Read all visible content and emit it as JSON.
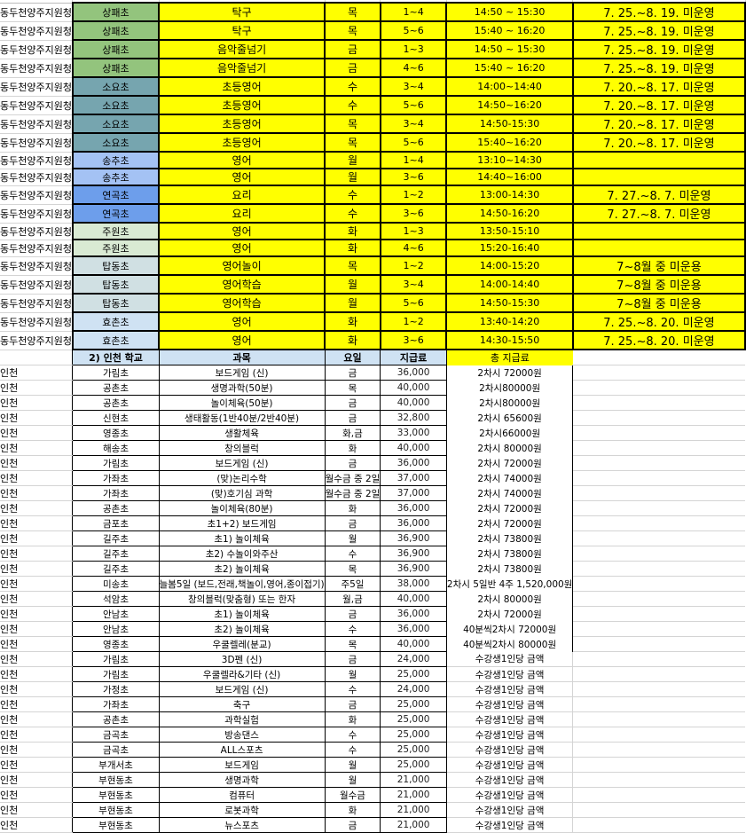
{
  "school_colors": {
    "상패초": "#93c47d",
    "소요초": "#76a5af",
    "송추초": "#a4c2f4",
    "연곡초": "#6d9eeb",
    "주원초": "#d9ead3",
    "탑동초": "#d0e0e3",
    "효촌초": "#cfe2f3"
  },
  "top_rows": [
    {
      "region": "동두천양주지원청",
      "school": "상패초",
      "subject": "탁구",
      "day": "목",
      "grade": "1~4",
      "time": "14:50 ~ 15:30",
      "note": "7. 25.~8. 19. 미운영"
    },
    {
      "region": "동두천양주지원청",
      "school": "상패초",
      "subject": "탁구",
      "day": "목",
      "grade": "5~6",
      "time": "15:40 ~ 16:20",
      "note": "7. 25.~8. 19. 미운영"
    },
    {
      "region": "동두천양주지원청",
      "school": "상패초",
      "subject": "음악줄넘기",
      "day": "금",
      "grade": "1~3",
      "time": "14:50 ~ 15:30",
      "note": "7. 25.~8. 19. 미운영"
    },
    {
      "region": "동두천양주지원청",
      "school": "상패초",
      "subject": "음악줄넘기",
      "day": "금",
      "grade": "4~6",
      "time": "15:40 ~ 16:20",
      "note": "7. 25.~8. 19. 미운영"
    },
    {
      "region": "동두천양주지원청",
      "school": "소요초",
      "subject": "초등영어",
      "day": "수",
      "grade": "3~4",
      "time": "14:00~14:40",
      "note": "7. 20.~8. 17.  미운영"
    },
    {
      "region": "동두천양주지원청",
      "school": "소요초",
      "subject": "초등영어",
      "day": "수",
      "grade": "5~6",
      "time": "14:50~16:20",
      "note": "7. 20.~8. 17.  미운영"
    },
    {
      "region": "동두천양주지원청",
      "school": "소요초",
      "subject": "초등영어",
      "day": "목",
      "grade": "3~4",
      "time": "14:50-15:30",
      "note": "7. 20.~8. 17.  미운영"
    },
    {
      "region": "동두천양주지원청",
      "school": "소요초",
      "subject": "초등영어",
      "day": "목",
      "grade": "5~6",
      "time": "15:40~16:20",
      "note": "7. 20.~8. 17.  미운영"
    },
    {
      "region": "동두천양주지원청",
      "school": "송추초",
      "subject": "영어",
      "day": "월",
      "grade": "1~4",
      "time": "13:10~14:30",
      "note": ""
    },
    {
      "region": "동두천양주지원청",
      "school": "송추초",
      "subject": "영어",
      "day": "월",
      "grade": "3~6",
      "time": "14:40~16:00",
      "note": ""
    },
    {
      "region": "동두천양주지원청",
      "school": "연곡초",
      "subject": "요리",
      "day": "수",
      "grade": "1~2",
      "time": "13:00-14:30",
      "note": "7. 27.~8. 7. 미운영"
    },
    {
      "region": "동두천양주지원청",
      "school": "연곡초",
      "subject": "요리",
      "day": "수",
      "grade": "3~6",
      "time": "14:50-16:20",
      "note": "7. 27.~8. 7. 미운영"
    },
    {
      "region": "동두천양주지원청",
      "school": "주원초",
      "subject": "영어",
      "day": "화",
      "grade": "1~3",
      "time": "13:50-15:10",
      "note": ""
    },
    {
      "region": "동두천양주지원청",
      "school": "주원초",
      "subject": "영어",
      "day": "화",
      "grade": "4~6",
      "time": "15:20-16:40",
      "note": ""
    },
    {
      "region": "동두천양주지원청",
      "school": "탑동초",
      "subject": "영어놀이",
      "day": "목",
      "grade": "1~2",
      "time": "14:00-15:20",
      "note": "7~8월 중 미운용"
    },
    {
      "region": "동두천양주지원청",
      "school": "탑동초",
      "subject": "영어학습",
      "day": "월",
      "grade": "3~4",
      "time": "14:00-14:40",
      "note": "7~8월 중 미운용"
    },
    {
      "region": "동두천양주지원청",
      "school": "탑동초",
      "subject": "영어학습",
      "day": "월",
      "grade": "5~6",
      "time": "14:50-15:30",
      "note": "7~8월 중 미운용"
    },
    {
      "region": "동두천양주지원청",
      "school": "효촌초",
      "subject": "영어",
      "day": "화",
      "grade": "1~2",
      "time": "13:40-14:20",
      "note": "7. 25.~8. 20. 미운영"
    },
    {
      "region": "동두천양주지원청",
      "school": "효촌초",
      "subject": "영어",
      "day": "화",
      "grade": "3~6",
      "time": "14:30-15:50",
      "note": "7. 25.~8. 20. 미운영"
    }
  ],
  "lower_header": {
    "school": "2)  인천 학교",
    "subject": "과목",
    "day": "요일",
    "fee": "지급료",
    "total": "총 지급료"
  },
  "lower_rows": [
    {
      "region": "인천",
      "school": "가림초",
      "subject": "보드게임 (신)",
      "day": "금",
      "fee": "36,000",
      "total": "2차시 72000원"
    },
    {
      "region": "인천",
      "school": "공촌초",
      "subject": "생명과학(50분)",
      "day": "목",
      "fee": "40,000",
      "total": "2차시80000원"
    },
    {
      "region": "인천",
      "school": "공촌초",
      "subject": "놀이체육(50분)",
      "day": "금",
      "fee": "40,000",
      "total": "2차시80000원"
    },
    {
      "region": "인천",
      "school": "신현초",
      "subject": "생태활동(1반40분/2반40분)",
      "day": "금",
      "fee": "32,800",
      "total": "2차시 65600원"
    },
    {
      "region": "인천",
      "school": "영종초",
      "subject": "생활체육",
      "day": "화,금",
      "fee": "33,000",
      "total": "2차시66000원"
    },
    {
      "region": "인천",
      "school": "해송초",
      "subject": "창의블럭",
      "day": "화",
      "fee": "40,000",
      "total": "2차시 80000원"
    },
    {
      "region": "인천",
      "school": "가림초",
      "subject": "보드게임 (신)",
      "day": "금",
      "fee": "36,000",
      "total": "2차시 72000원"
    },
    {
      "region": "인천",
      "school": "가좌초",
      "subject": "(맞)논리수학",
      "day": "월수금 중 2일",
      "fee": "37,000",
      "total": "2차시 74000원"
    },
    {
      "region": "인천",
      "school": "가좌초",
      "subject": "(맞)호기심 과학",
      "day": "월수금 중 2일",
      "fee": "37,000",
      "total": "2차시 74000원"
    },
    {
      "region": "인천",
      "school": "공촌초",
      "subject": "놀이체육(80분)",
      "day": "화",
      "fee": "36,000",
      "total": "2차시 72000원"
    },
    {
      "region": "인천",
      "school": "금포초",
      "subject": "초1+2) 보드게임",
      "day": "금",
      "fee": "36,000",
      "total": "2차시 72000원"
    },
    {
      "region": "인천",
      "school": "길주초",
      "subject": "초1) 놀이체육",
      "day": "월",
      "fee": "36,900",
      "total": "2차시 73800원"
    },
    {
      "region": "인천",
      "school": "길주초",
      "subject": "초2) 수놀이와주산",
      "day": "수",
      "fee": "36,900",
      "total": "2차시 73800원"
    },
    {
      "region": "인천",
      "school": "길주초",
      "subject": "초2) 놀이체육",
      "day": "목",
      "fee": "36,900",
      "total": "2차시 73800원"
    },
    {
      "region": "인천",
      "school": "미송초",
      "subject": "늘봄5일 (보드,전래,책놀이,영어,종이접기)",
      "day": "주5일",
      "fee": "38,000",
      "total": "2차시 5일반 4주 1,520,000원"
    },
    {
      "region": "인천",
      "school": "석암초",
      "subject": "창의블럭(맞춤형) 또는 한자",
      "day": "월,금",
      "fee": "40,000",
      "total": "2차시 80000원"
    },
    {
      "region": "인천",
      "school": "안남초",
      "subject": "초1) 놀이체육",
      "day": "금",
      "fee": "36,000",
      "total": "2차시 72000원"
    },
    {
      "region": "인천",
      "school": "안남초",
      "subject": "초2) 놀이체육",
      "day": "수",
      "fee": "36,000",
      "total": "40분씩2차시 72000원"
    },
    {
      "region": "인천",
      "school": "영종초",
      "subject": "우쿨렐레(분교)",
      "day": "목",
      "fee": "40,000",
      "total": "40분씩2차시 80000원"
    },
    {
      "region": "인천",
      "school": "가림초",
      "subject": "3D펜 (신)",
      "day": "금",
      "fee": "24,000",
      "total": "수강생1인당 금액"
    },
    {
      "region": "인천",
      "school": "가림초",
      "subject": "우쿨렐라&기타 (신)",
      "day": "월",
      "fee": "25,000",
      "total": "수강생1인당 금액"
    },
    {
      "region": "인천",
      "school": "가정초",
      "subject": "보드게임 (신)",
      "day": "수",
      "fee": "24,000",
      "total": "수강생1인당 금액"
    },
    {
      "region": "인천",
      "school": "가좌초",
      "subject": "축구",
      "day": "금",
      "fee": "25,000",
      "total": "수강생1인당 금액"
    },
    {
      "region": "인천",
      "school": "공촌초",
      "subject": "과학실험",
      "day": "화",
      "fee": "25,000",
      "total": "수강생1인당 금액"
    },
    {
      "region": "인천",
      "school": "금곡초",
      "subject": "방송댄스",
      "day": "수",
      "fee": "25,000",
      "total": "수강생1인당 금액"
    },
    {
      "region": "인천",
      "school": "금곡초",
      "subject": "ALL스포츠",
      "day": "수",
      "fee": "25,000",
      "total": "수강생1인당 금액"
    },
    {
      "region": "인천",
      "school": "부개서초",
      "subject": "보드게임",
      "day": "월",
      "fee": "25,000",
      "total": "수강생1인당 금액"
    },
    {
      "region": "인천",
      "school": "부현동초",
      "subject": "생명과학",
      "day": "월",
      "fee": "21,000",
      "total": "수강생1인당 금액"
    },
    {
      "region": "인천",
      "school": "부현동초",
      "subject": "컴퓨터",
      "day": "월수금",
      "fee": "21,000",
      "total": "수강생1인당 금액"
    },
    {
      "region": "인천",
      "school": "부현동초",
      "subject": "로봇과학",
      "day": "화",
      "fee": "21,000",
      "total": "수강생1인당 금액"
    },
    {
      "region": "인천",
      "school": "부현동초",
      "subject": "뉴스포츠",
      "day": "금",
      "fee": "21,000",
      "total": "수강생1인당 금액"
    }
  ]
}
